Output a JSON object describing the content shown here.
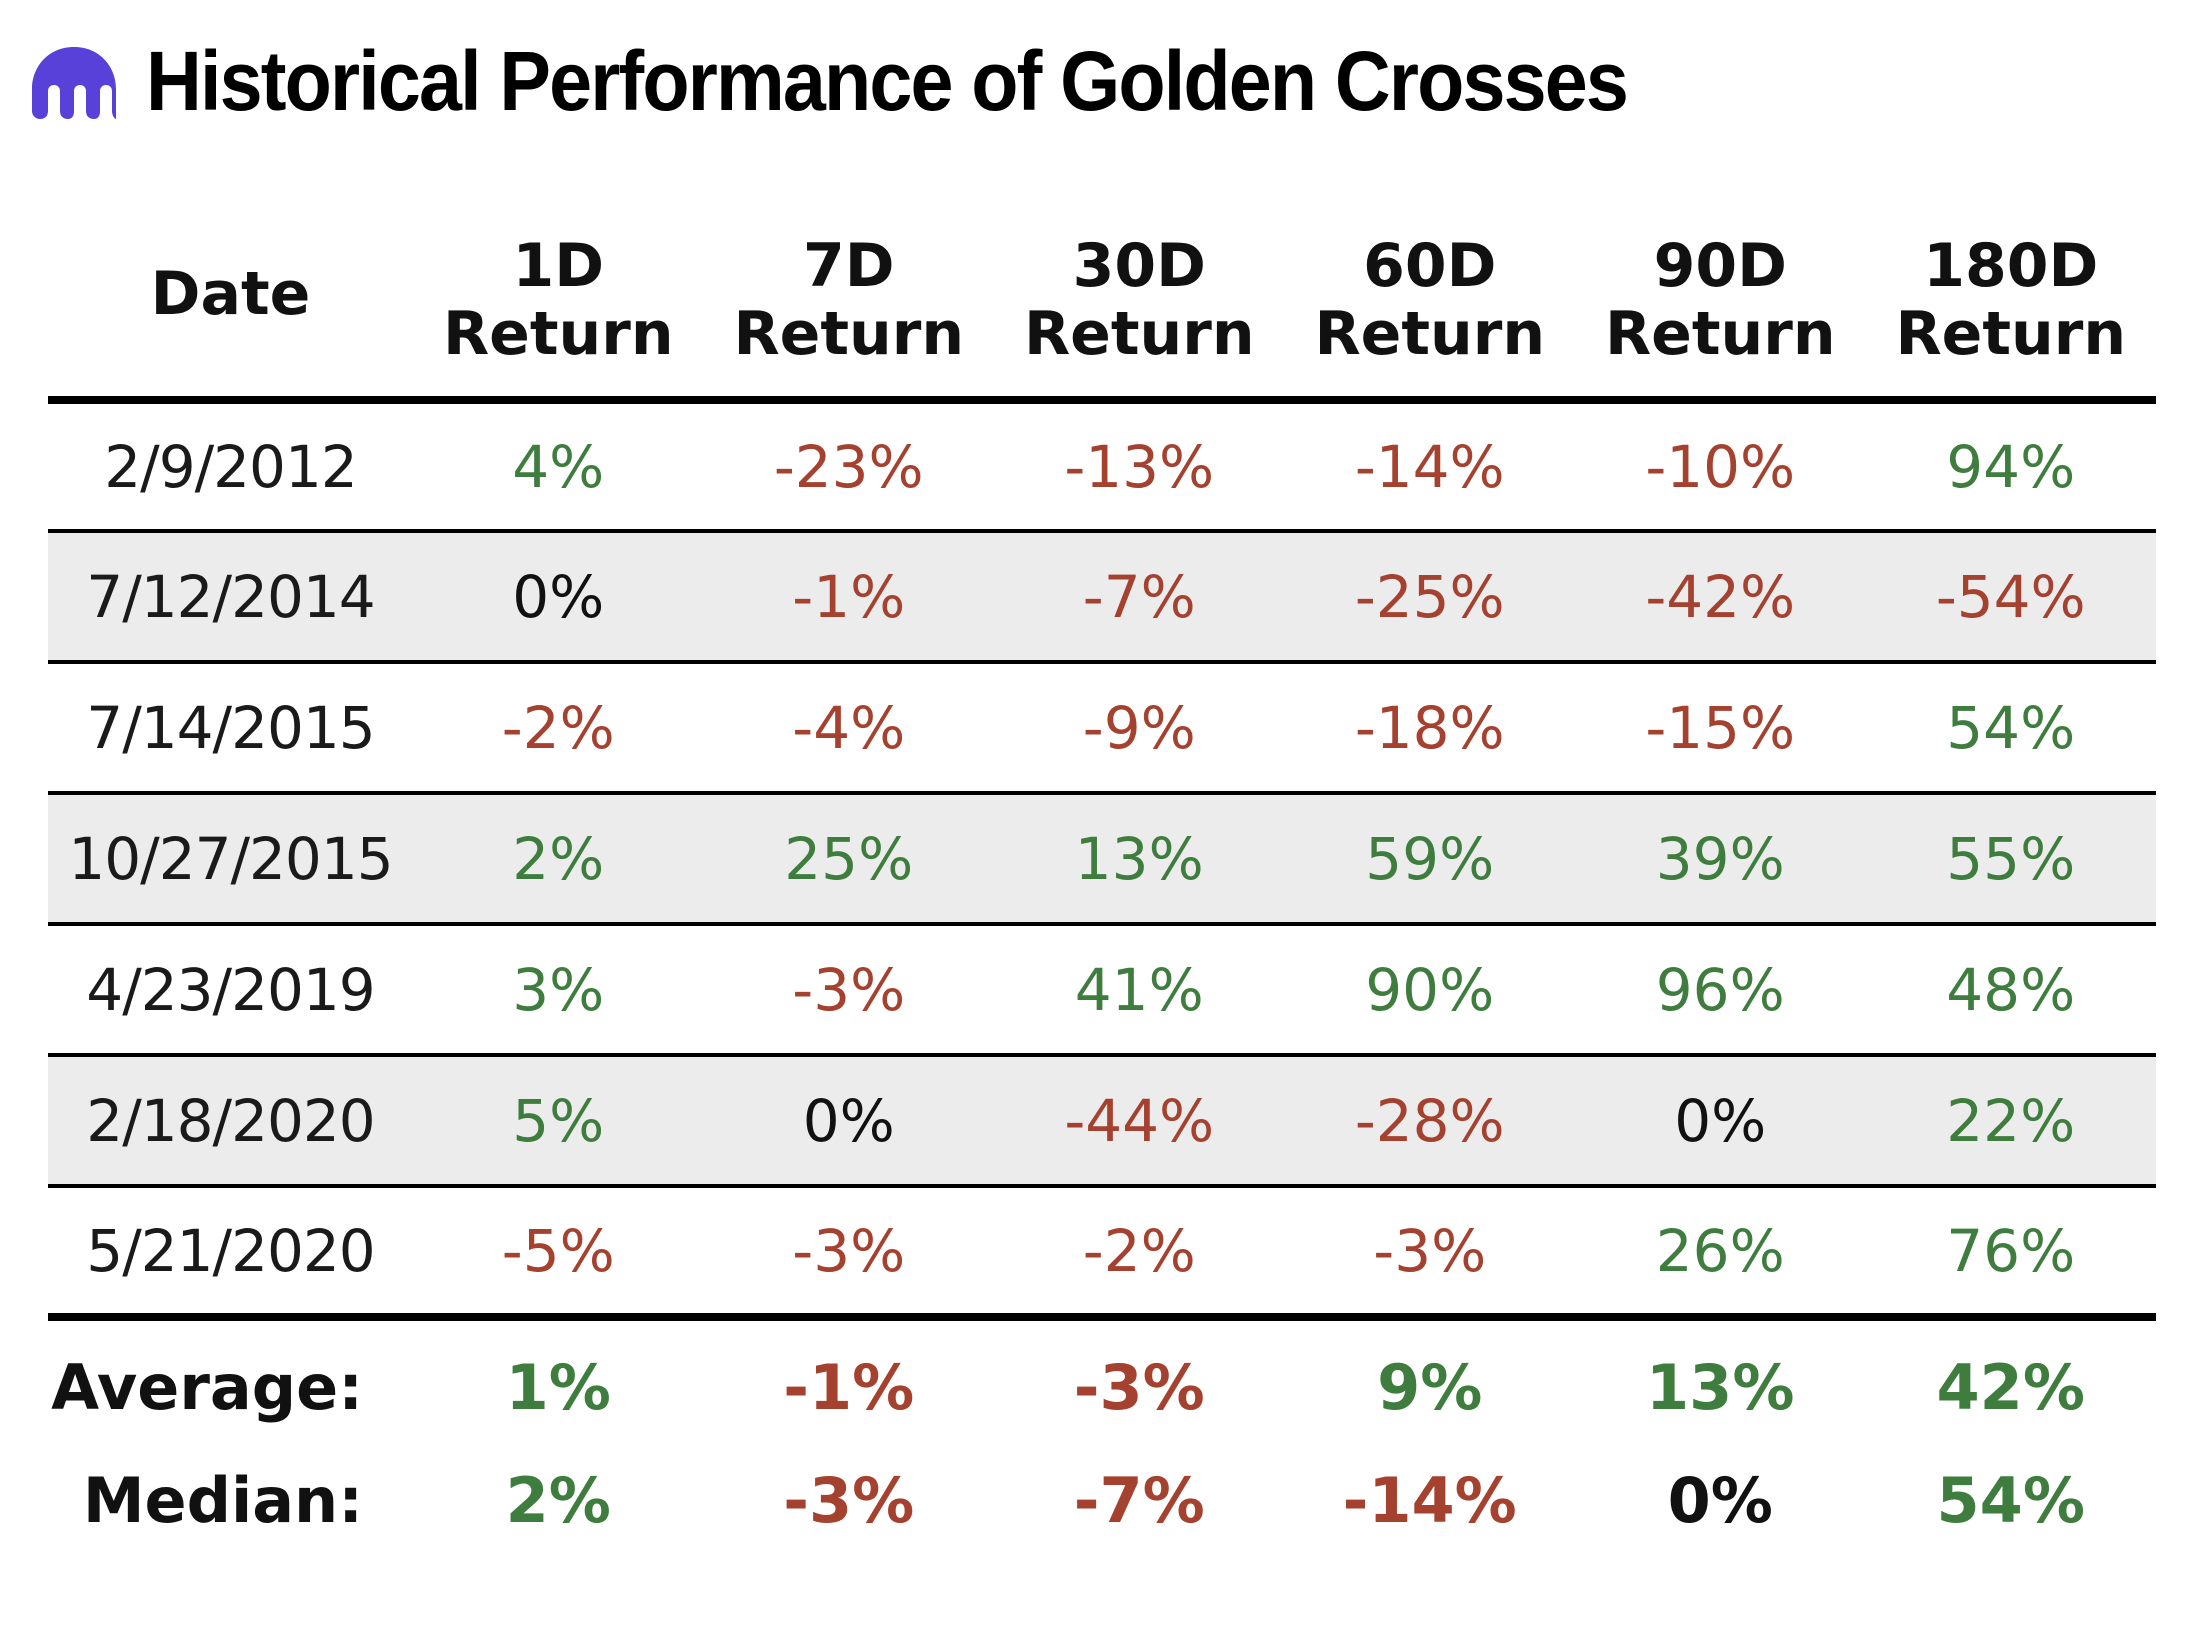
{
  "header": {
    "title": "Historical Performance of Golden Crosses",
    "logo_icon": "kraken-logo-icon",
    "logo_color": "#5741d9"
  },
  "colors": {
    "positive": "#3e7d3e",
    "negative": "#a4412f",
    "neutral": "#111111",
    "shade": "#ececec"
  },
  "table": {
    "columns": [
      {
        "l1": "Date",
        "l2": ""
      },
      {
        "l1": "1D",
        "l2": "Return"
      },
      {
        "l1": "7D",
        "l2": "Return"
      },
      {
        "l1": "30D",
        "l2": "Return"
      },
      {
        "l1": "60D",
        "l2": "Return"
      },
      {
        "l1": "90D",
        "l2": "Return"
      },
      {
        "l1": "180D",
        "l2": "Return"
      }
    ],
    "rows": [
      [
        "2/9/2012",
        "4%",
        "-23%",
        "-13%",
        "-14%",
        "-10%",
        "94%"
      ],
      [
        "7/12/2014",
        "0%",
        "-1%",
        "-7%",
        "-25%",
        "-42%",
        "-54%"
      ],
      [
        "7/14/2015",
        "-2%",
        "-4%",
        "-9%",
        "-18%",
        "-15%",
        "54%"
      ],
      [
        "10/27/2015",
        "2%",
        "25%",
        "13%",
        "59%",
        "39%",
        "55%"
      ],
      [
        "4/23/2019",
        "3%",
        "-3%",
        "41%",
        "90%",
        "96%",
        "48%"
      ],
      [
        "2/18/2020",
        "5%",
        "0%",
        "-44%",
        "-28%",
        "0%",
        "22%"
      ],
      [
        "5/21/2020",
        "-5%",
        "-3%",
        "-2%",
        "-3%",
        "26%",
        "76%"
      ]
    ],
    "summary": [
      [
        "Average:",
        "1%",
        "-1%",
        "-3%",
        "9%",
        "13%",
        "42%"
      ],
      [
        "Median:",
        "2%",
        "-3%",
        "-7%",
        "-14%",
        "0%",
        "54%"
      ]
    ]
  }
}
